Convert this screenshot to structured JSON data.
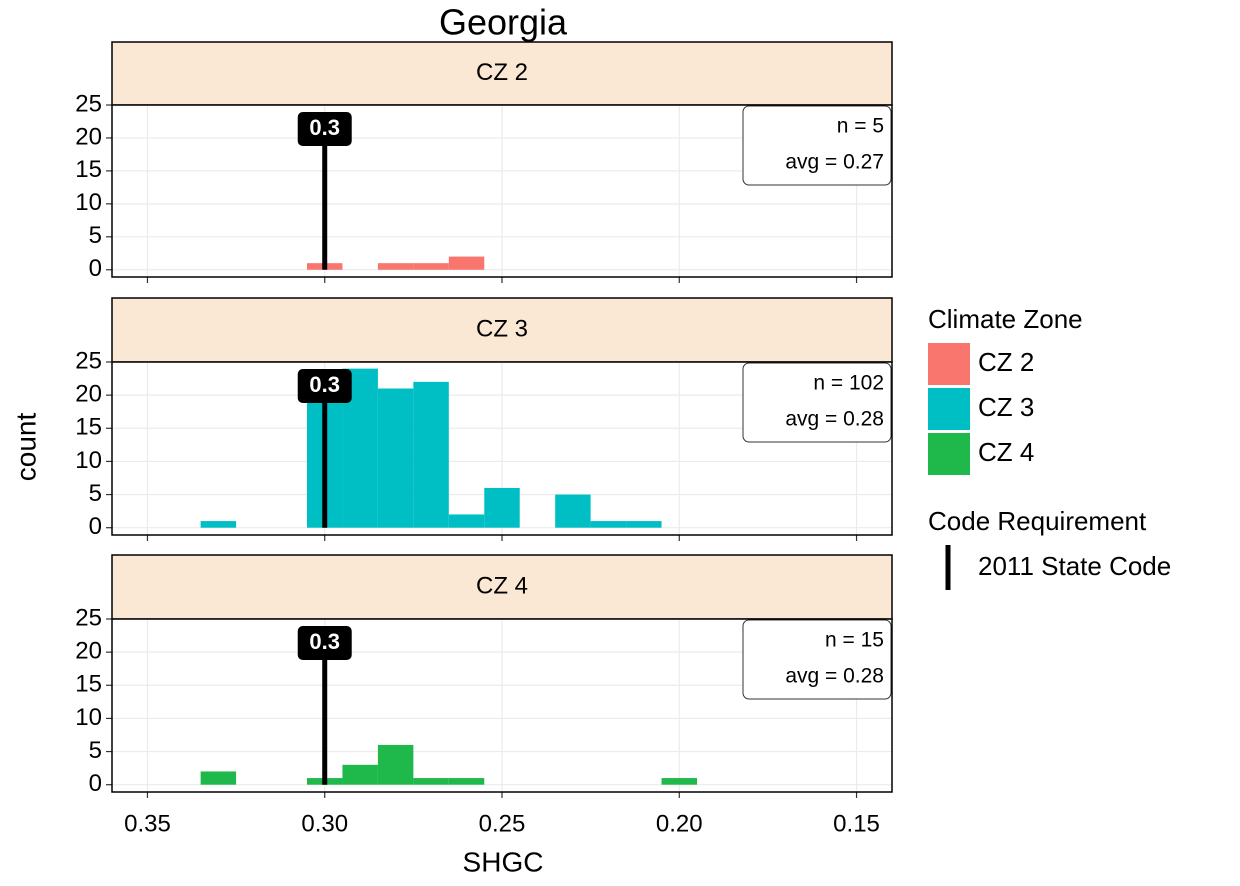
{
  "chart_data": {
    "type": "histogram",
    "title": "Georgia",
    "x_label": "SHGC",
    "y_label": "count",
    "bins": [
      0.195,
      0.205,
      0.215,
      0.225,
      0.235,
      0.245,
      0.255,
      0.265,
      0.275,
      0.285,
      0.295,
      0.305,
      0.315,
      0.325,
      0.335
    ],
    "xlim": [
      0.36,
      0.14
    ],
    "xticks": [
      0.35,
      {
        "value": 0.3,
        "label": "0.30"
      },
      0.25,
      {
        "value": 0.2,
        "label": "0.20"
      },
      0.15
    ],
    "ylim": [
      -1.1,
      25
    ],
    "yticks": [
      0,
      5,
      10,
      15,
      20,
      25
    ],
    "grid": true,
    "legend_title": "Climate Zone",
    "facets": [
      {
        "label": "CZ 2",
        "color": "#f8766d",
        "values": [
          0,
          0,
          0,
          0,
          0,
          0,
          2,
          1,
          1,
          0,
          1,
          0,
          0,
          0
        ],
        "n_label": "n = 5",
        "avg_label": "avg = 0.27"
      },
      {
        "label": "CZ 3",
        "color": "#00bfc4",
        "values": [
          0,
          1,
          1,
          5,
          0,
          6,
          2,
          22,
          21,
          24,
          19,
          0,
          0,
          1
        ],
        "n_label": "n = 102",
        "avg_label": "avg = 0.28"
      },
      {
        "label": "CZ 4",
        "color": "#1fb84a",
        "values": [
          1,
          0,
          0,
          0,
          0,
          0,
          1,
          1,
          6,
          3,
          1,
          0,
          0,
          2
        ],
        "n_label": "n = 15",
        "avg_label": "avg = 0.28"
      }
    ],
    "ref_line": {
      "value": 0.3,
      "name": "2011 State Code",
      "color": "#000000"
    },
    "ref_legend_title": "Code Requirement"
  }
}
